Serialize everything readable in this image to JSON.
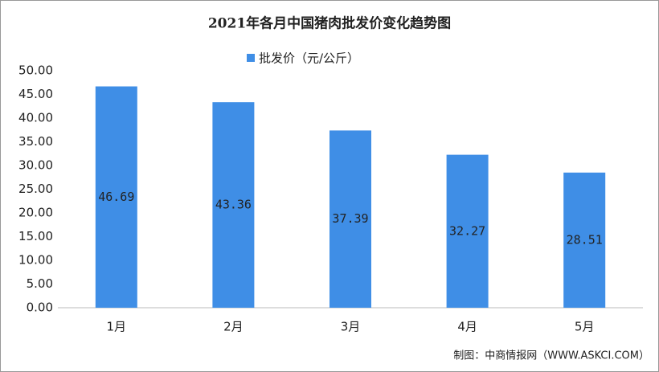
{
  "chart_data": {
    "type": "bar",
    "title": "2021年各月中国猪肉批发价变化趋势图",
    "categories": [
      "1月",
      "2月",
      "3月",
      "4月",
      "5月"
    ],
    "series": [
      {
        "name": "批发价（元/公斤）",
        "color": "#3f8ee6",
        "values": [
          46.69,
          43.36,
          37.39,
          32.27,
          28.51
        ]
      }
    ],
    "ylim": [
      0,
      50
    ],
    "yticks": [
      {
        "value": 0,
        "label": "0.00"
      },
      {
        "value": 5,
        "label": "5.00"
      },
      {
        "value": 10,
        "label": "10.00"
      },
      {
        "value": 15,
        "label": "15.00"
      },
      {
        "value": 20,
        "label": "20.00"
      },
      {
        "value": 25,
        "label": "25.00"
      },
      {
        "value": 30,
        "label": "30.00"
      },
      {
        "value": 35,
        "label": "35.00"
      },
      {
        "value": 40,
        "label": "40.00"
      },
      {
        "value": 45,
        "label": "45.00"
      },
      {
        "value": 50,
        "label": "50.00"
      }
    ],
    "grid": false,
    "source": "制图：中商情报网（WWW.ASKCI.COM）"
  }
}
